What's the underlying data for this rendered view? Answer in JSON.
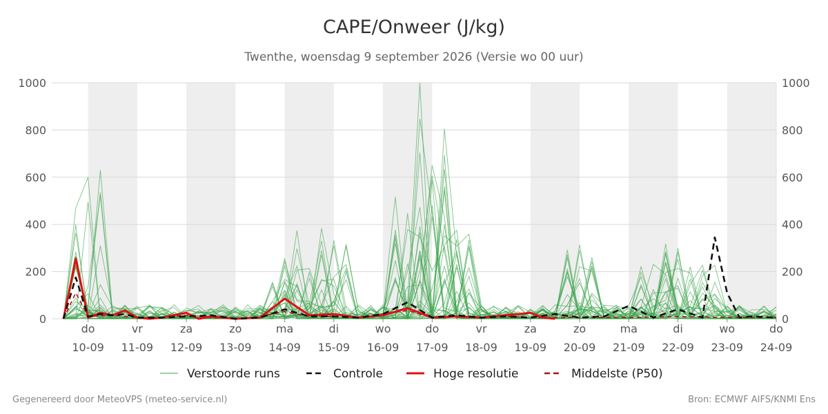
{
  "chart_data": {
    "type": "line",
    "title": "CAPE/Onweer (J/kg)",
    "subtitle": "Twenthe, woensdag  9 september 2026 (Versie wo 00 uur)",
    "ylim": [
      0,
      1000
    ],
    "yticks": [
      0,
      200,
      400,
      600,
      800,
      1000
    ],
    "x_range": [
      "2026-09-09T12:00",
      "2026-09-24T00:00"
    ],
    "x_ticks": [
      {
        "day": "do",
        "date": "10-09"
      },
      {
        "day": "vr",
        "date": "11-09"
      },
      {
        "day": "za",
        "date": "12-09"
      },
      {
        "day": "zo",
        "date": "13-09"
      },
      {
        "day": "ma",
        "date": "14-09"
      },
      {
        "day": "di",
        "date": "15-09"
      },
      {
        "day": "wo",
        "date": "16-09"
      },
      {
        "day": "do",
        "date": "17-09"
      },
      {
        "day": "vr",
        "date": "18-09"
      },
      {
        "day": "za",
        "date": "19-09"
      },
      {
        "day": "zo",
        "date": "20-09"
      },
      {
        "day": "ma",
        "date": "21-09"
      },
      {
        "day": "di",
        "date": "22-09"
      },
      {
        "day": "wo",
        "date": "23-09"
      },
      {
        "day": "do",
        "date": "24-09"
      }
    ],
    "shaded_days": [
      "10-09",
      "12-09",
      "14-09",
      "16-09",
      "19-09",
      "21-09",
      "23-09"
    ],
    "grid": true,
    "legend": {
      "position": "bottom",
      "entries": [
        {
          "label": "Verstoorde runs",
          "color": "#3aa34a",
          "style": "thin-solid"
        },
        {
          "label": "Controle",
          "color": "#111111",
          "style": "dashed"
        },
        {
          "label": "Hoge resolutie",
          "color": "#e01010",
          "style": "thick-solid"
        },
        {
          "label": "Middelste (P50)",
          "color": "#b01010",
          "style": "dashed"
        }
      ]
    },
    "series": [
      {
        "name": "Hoge resolutie",
        "x": [
          "2026-09-09T12:00",
          "2026-09-09T18:00",
          "2026-09-10T00:00",
          "2026-09-10T06:00",
          "2026-09-10T12:00",
          "2026-09-10T18:00",
          "2026-09-11T00:00",
          "2026-09-11T06:00",
          "2026-09-11T12:00",
          "2026-09-12T00:00",
          "2026-09-12T06:00",
          "2026-09-12T12:00",
          "2026-09-13T00:00",
          "2026-09-13T12:00",
          "2026-09-14T00:00",
          "2026-09-14T12:00",
          "2026-09-15T00:00",
          "2026-09-15T12:00",
          "2026-09-16T00:00",
          "2026-09-16T12:00",
          "2026-09-17T00:00",
          "2026-09-17T12:00",
          "2026-09-18T00:00",
          "2026-09-18T12:00",
          "2026-09-19T00:00",
          "2026-09-19T06:00",
          "2026-09-19T12:00"
        ],
        "values": [
          0,
          255,
          5,
          25,
          15,
          35,
          5,
          0,
          5,
          25,
          0,
          10,
          0,
          5,
          85,
          15,
          20,
          5,
          15,
          45,
          5,
          10,
          5,
          15,
          25,
          5,
          0
        ]
      },
      {
        "name": "Controle",
        "x": [
          "2026-09-09T12:00",
          "2026-09-09T18:00",
          "2026-09-10T00:00",
          "2026-09-10T06:00",
          "2026-09-10T12:00",
          "2026-09-10T18:00",
          "2026-09-11T00:00",
          "2026-09-11T12:00",
          "2026-09-12T00:00",
          "2026-09-12T12:00",
          "2026-09-13T00:00",
          "2026-09-13T12:00",
          "2026-09-14T00:00",
          "2026-09-14T12:00",
          "2026-09-15T00:00",
          "2026-09-15T12:00",
          "2026-09-16T00:00",
          "2026-09-16T12:00",
          "2026-09-17T00:00",
          "2026-09-17T12:00",
          "2026-09-18T00:00",
          "2026-09-18T12:00",
          "2026-09-19T00:00",
          "2026-09-19T12:00",
          "2026-09-20T00:00",
          "2026-09-20T12:00",
          "2026-09-21T00:00",
          "2026-09-21T12:00",
          "2026-09-22T00:00",
          "2026-09-22T12:00",
          "2026-09-22T18:00",
          "2026-09-23T00:00",
          "2026-09-23T06:00",
          "2026-09-23T12:00",
          "2026-09-24T00:00"
        ],
        "values": [
          0,
          175,
          10,
          20,
          15,
          20,
          5,
          5,
          10,
          15,
          0,
          5,
          40,
          10,
          10,
          5,
          20,
          70,
          5,
          15,
          5,
          10,
          5,
          20,
          5,
          10,
          55,
          5,
          40,
          5,
          345,
          110,
          5,
          10,
          5
        ]
      },
      {
        "name": "Middelste (P50)",
        "x": [
          "2026-09-09T12:00",
          "2026-09-09T18:00",
          "2026-09-10T00:00",
          "2026-09-10T12:00",
          "2026-09-11T00:00",
          "2026-09-11T12:00",
          "2026-09-12T00:00",
          "2026-09-12T12:00",
          "2026-09-13T00:00",
          "2026-09-13T12:00",
          "2026-09-14T00:00",
          "2026-09-14T12:00",
          "2026-09-15T00:00",
          "2026-09-15T12:00",
          "2026-09-16T00:00",
          "2026-09-16T12:00",
          "2026-09-17T00:00",
          "2026-09-17T12:00",
          "2026-09-18T00:00",
          "2026-09-18T12:00",
          "2026-09-19T00:00",
          "2026-09-20T00:00",
          "2026-09-21T00:00",
          "2026-09-22T00:00",
          "2026-09-23T00:00",
          "2026-09-24T00:00"
        ],
        "values": [
          0,
          110,
          10,
          15,
          5,
          5,
          15,
          5,
          0,
          10,
          30,
          10,
          10,
          5,
          20,
          35,
          5,
          10,
          5,
          10,
          5,
          5,
          5,
          10,
          5,
          5
        ]
      }
    ]
  },
  "footer": {
    "left": "Gegenereerd door MeteoVPS (meteo-service.nl)",
    "right": "Bron: ECMWF AIFS/KNMI Ens"
  }
}
